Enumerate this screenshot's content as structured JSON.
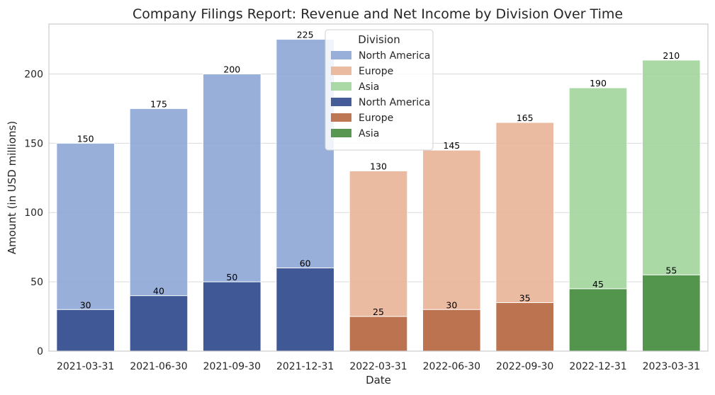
{
  "chart_data": {
    "type": "bar",
    "title": "Company Filings Report: Revenue and Net Income by Division Over Time",
    "xlabel": "Date",
    "ylabel": "Amount (in USD millions)",
    "ylim": [
      0,
      236
    ],
    "yticks": [
      "0",
      "50",
      "100",
      "150",
      "200"
    ],
    "ytick_values": [
      0,
      50,
      100,
      150,
      200
    ],
    "grid": true,
    "legend_position": "top-center",
    "legend_title": "Division",
    "categories": [
      "2021-03-31",
      "2021-06-30",
      "2021-09-30",
      "2021-12-31",
      "2022-03-31",
      "2022-06-30",
      "2022-09-30",
      "2022-12-31",
      "2023-03-31"
    ],
    "series": [
      {
        "name": "North America",
        "measure": "revenue",
        "color": "#8da6d6",
        "values": [
          150,
          175,
          200,
          225,
          null,
          null,
          null,
          null,
          null
        ]
      },
      {
        "name": "Europe",
        "measure": "revenue",
        "color": "#e9b497",
        "values": [
          null,
          null,
          null,
          null,
          130,
          145,
          165,
          null,
          null
        ]
      },
      {
        "name": "Asia",
        "measure": "revenue",
        "color": "#a1d59c",
        "values": [
          null,
          null,
          null,
          null,
          null,
          null,
          null,
          190,
          210
        ]
      },
      {
        "name": "North America",
        "measure": "net_income",
        "color": "#3c5393",
        "values": [
          30,
          40,
          50,
          60,
          null,
          null,
          null,
          null,
          null
        ]
      },
      {
        "name": "Europe",
        "measure": "net_income",
        "color": "#b9704c",
        "values": [
          null,
          null,
          null,
          null,
          25,
          30,
          35,
          null,
          null
        ]
      },
      {
        "name": "Asia",
        "measure": "net_income",
        "color": "#4f9149",
        "values": [
          null,
          null,
          null,
          null,
          null,
          null,
          null,
          45,
          55
        ]
      }
    ]
  }
}
